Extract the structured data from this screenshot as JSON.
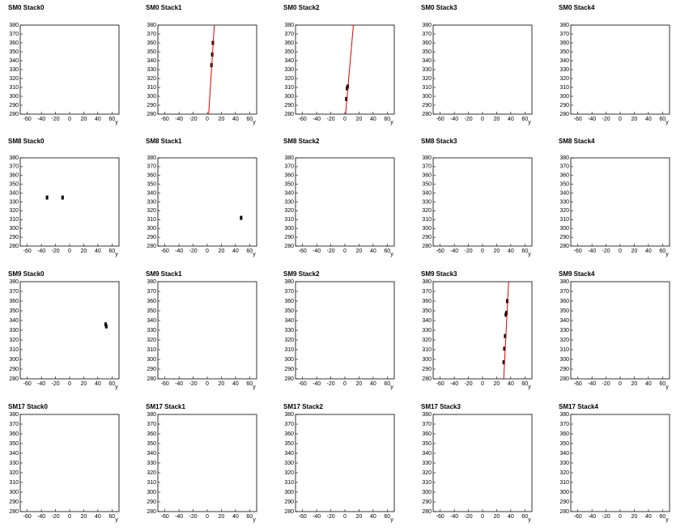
{
  "chart_data": [
    {
      "type": "scatter",
      "title": "SM0 Stack0",
      "x_label": "y",
      "xlim": [
        -70,
        70
      ],
      "ylim": [
        280,
        380
      ],
      "xticks": [
        -60,
        -40,
        -20,
        0,
        20,
        40,
        60
      ],
      "yticks": [
        280,
        290,
        300,
        310,
        320,
        330,
        340,
        350,
        360,
        370,
        380
      ],
      "color": "#000000",
      "x": [],
      "y": []
    },
    {
      "type": "scatter",
      "title": "SM0 Stack1",
      "x_label": "y",
      "xlim": [
        -70,
        70
      ],
      "ylim": [
        280,
        380
      ],
      "xticks": [
        -60,
        -40,
        -20,
        0,
        20,
        40,
        60
      ],
      "yticks": [
        280,
        290,
        300,
        310,
        320,
        330,
        340,
        350,
        360,
        370,
        380
      ],
      "color": "#000000",
      "x": [
        8,
        7,
        6
      ],
      "y": [
        360,
        347,
        335
      ],
      "fit": {
        "color": "#e00000",
        "x": [
          2,
          10
        ],
        "y": [
          280,
          380
        ]
      }
    },
    {
      "type": "scatter",
      "title": "SM0 Stack2",
      "x_label": "y",
      "xlim": [
        -70,
        70
      ],
      "ylim": [
        280,
        380
      ],
      "xticks": [
        -60,
        -40,
        -20,
        0,
        20,
        40,
        60
      ],
      "yticks": [
        280,
        290,
        300,
        310,
        320,
        330,
        340,
        350,
        360,
        370,
        380
      ],
      "color": "#000000",
      "x": [
        4,
        3,
        2
      ],
      "y": [
        311,
        309,
        297
      ],
      "fit": {
        "color": "#e00000",
        "x": [
          1,
          12
        ],
        "y": [
          280,
          380
        ]
      }
    },
    {
      "type": "scatter",
      "title": "SM0 Stack3",
      "x_label": "y",
      "xlim": [
        -70,
        70
      ],
      "ylim": [
        280,
        380
      ],
      "xticks": [
        -60,
        -40,
        -20,
        0,
        20,
        40,
        60
      ],
      "yticks": [
        280,
        290,
        300,
        310,
        320,
        330,
        340,
        350,
        360,
        370,
        380
      ],
      "color": "#000000",
      "x": [],
      "y": []
    },
    {
      "type": "scatter",
      "title": "SM0 Stack4",
      "x_label": "y",
      "xlim": [
        -70,
        70
      ],
      "ylim": [
        280,
        380
      ],
      "xticks": [
        -60,
        -40,
        -20,
        0,
        20,
        40,
        60
      ],
      "yticks": [
        280,
        290,
        300,
        310,
        320,
        330,
        340,
        350,
        360,
        370,
        380
      ],
      "color": "#000000",
      "x": [],
      "y": []
    },
    {
      "type": "scatter",
      "title": "SM8 Stack0",
      "x_label": "y",
      "xlim": [
        -70,
        70
      ],
      "ylim": [
        280,
        380
      ],
      "xticks": [
        -60,
        -40,
        -20,
        0,
        20,
        40,
        60
      ],
      "yticks": [
        280,
        290,
        300,
        310,
        320,
        330,
        340,
        350,
        360,
        370,
        380
      ],
      "color": "#000000",
      "x": [
        -32,
        -10
      ],
      "y": [
        335,
        335
      ]
    },
    {
      "type": "scatter",
      "title": "SM8 Stack1",
      "x_label": "y",
      "xlim": [
        -70,
        70
      ],
      "ylim": [
        280,
        380
      ],
      "xticks": [
        -60,
        -40,
        -20,
        0,
        20,
        40,
        60
      ],
      "yticks": [
        280,
        290,
        300,
        310,
        320,
        330,
        340,
        350,
        360,
        370,
        380
      ],
      "color": "#000000",
      "x": [
        48
      ],
      "y": [
        312
      ]
    },
    {
      "type": "scatter",
      "title": "SM8 Stack2",
      "x_label": "y",
      "xlim": [
        -70,
        70
      ],
      "ylim": [
        280,
        380
      ],
      "xticks": [
        -60,
        -40,
        -20,
        0,
        20,
        40,
        60
      ],
      "yticks": [
        280,
        290,
        300,
        310,
        320,
        330,
        340,
        350,
        360,
        370,
        380
      ],
      "color": "#000000",
      "x": [],
      "y": []
    },
    {
      "type": "scatter",
      "title": "SM8 Stack3",
      "x_label": "y",
      "xlim": [
        -70,
        70
      ],
      "ylim": [
        280,
        380
      ],
      "xticks": [
        -60,
        -40,
        -20,
        0,
        20,
        40,
        60
      ],
      "yticks": [
        280,
        290,
        300,
        310,
        320,
        330,
        340,
        350,
        360,
        370,
        380
      ],
      "color": "#000000",
      "x": [],
      "y": []
    },
    {
      "type": "scatter",
      "title": "SM8 Stack4",
      "x_label": "y",
      "xlim": [
        -70,
        70
      ],
      "ylim": [
        280,
        380
      ],
      "xticks": [
        -60,
        -40,
        -20,
        0,
        20,
        40,
        60
      ],
      "yticks": [
        280,
        290,
        300,
        310,
        320,
        330,
        340,
        350,
        360,
        370,
        380
      ],
      "color": "#000000",
      "x": [],
      "y": []
    },
    {
      "type": "scatter",
      "title": "SM9 Stack0",
      "x_label": "y",
      "xlim": [
        -70,
        70
      ],
      "ylim": [
        280,
        380
      ],
      "xticks": [
        -60,
        -40,
        -20,
        0,
        20,
        40,
        60
      ],
      "yticks": [
        280,
        290,
        300,
        310,
        320,
        330,
        340,
        350,
        360,
        370,
        380
      ],
      "color": "#000000",
      "x": [
        51,
        52
      ],
      "y": [
        336,
        334
      ]
    },
    {
      "type": "scatter",
      "title": "SM9 Stack1",
      "x_label": "y",
      "xlim": [
        -70,
        70
      ],
      "ylim": [
        280,
        380
      ],
      "xticks": [
        -60,
        -40,
        -20,
        0,
        20,
        40,
        60
      ],
      "yticks": [
        280,
        290,
        300,
        310,
        320,
        330,
        340,
        350,
        360,
        370,
        380
      ],
      "color": "#000000",
      "x": [],
      "y": []
    },
    {
      "type": "scatter",
      "title": "SM9 Stack2",
      "x_label": "y",
      "xlim": [
        -70,
        70
      ],
      "ylim": [
        280,
        380
      ],
      "xticks": [
        -60,
        -40,
        -20,
        0,
        20,
        40,
        60
      ],
      "yticks": [
        280,
        290,
        300,
        310,
        320,
        330,
        340,
        350,
        360,
        370,
        380
      ],
      "color": "#000000",
      "x": [],
      "y": []
    },
    {
      "type": "scatter",
      "title": "SM9 Stack3",
      "x_label": "y",
      "xlim": [
        -70,
        70
      ],
      "ylim": [
        280,
        380
      ],
      "xticks": [
        -60,
        -40,
        -20,
        0,
        20,
        40,
        60
      ],
      "yticks": [
        280,
        290,
        300,
        310,
        320,
        330,
        340,
        350,
        360,
        370,
        380
      ],
      "color": "#000000",
      "x": [
        35,
        34,
        33,
        32,
        31,
        30
      ],
      "y": [
        360,
        348,
        346,
        324,
        311,
        297
      ],
      "fit": {
        "color": "#e00000",
        "x": [
          30,
          37
        ],
        "y": [
          280,
          380
        ]
      }
    },
    {
      "type": "scatter",
      "title": "SM9 Stack4",
      "x_label": "y",
      "xlim": [
        -70,
        70
      ],
      "ylim": [
        280,
        380
      ],
      "xticks": [
        -60,
        -40,
        -20,
        0,
        20,
        40,
        60
      ],
      "yticks": [
        280,
        290,
        300,
        310,
        320,
        330,
        340,
        350,
        360,
        370,
        380
      ],
      "color": "#000000",
      "x": [],
      "y": []
    },
    {
      "type": "scatter",
      "title": "SM17 Stack0",
      "x_label": "y",
      "xlim": [
        -70,
        70
      ],
      "ylim": [
        280,
        380
      ],
      "xticks": [
        -60,
        -40,
        -20,
        0,
        20,
        40,
        60
      ],
      "yticks": [
        280,
        290,
        300,
        310,
        320,
        330,
        340,
        350,
        360,
        370,
        380
      ],
      "color": "#000000",
      "x": [],
      "y": []
    },
    {
      "type": "scatter",
      "title": "SM17 Stack1",
      "x_label": "y",
      "xlim": [
        -70,
        70
      ],
      "ylim": [
        280,
        380
      ],
      "xticks": [
        -60,
        -40,
        -20,
        0,
        20,
        40,
        60
      ],
      "yticks": [
        280,
        290,
        300,
        310,
        320,
        330,
        340,
        350,
        360,
        370,
        380
      ],
      "color": "#000000",
      "x": [],
      "y": []
    },
    {
      "type": "scatter",
      "title": "SM17 Stack2",
      "x_label": "y",
      "xlim": [
        -70,
        70
      ],
      "ylim": [
        280,
        380
      ],
      "xticks": [
        -60,
        -40,
        -20,
        0,
        20,
        40,
        60
      ],
      "yticks": [
        280,
        290,
        300,
        310,
        320,
        330,
        340,
        350,
        360,
        370,
        380
      ],
      "color": "#000000",
      "x": [],
      "y": []
    },
    {
      "type": "scatter",
      "title": "SM17 Stack3",
      "x_label": "y",
      "xlim": [
        -70,
        70
      ],
      "ylim": [
        280,
        380
      ],
      "xticks": [
        -60,
        -40,
        -20,
        0,
        20,
        40,
        60
      ],
      "yticks": [
        280,
        290,
        300,
        310,
        320,
        330,
        340,
        350,
        360,
        370,
        380
      ],
      "color": "#000000",
      "x": [],
      "y": []
    },
    {
      "type": "scatter",
      "title": "SM17 Stack4",
      "x_label": "y",
      "xlim": [
        -70,
        70
      ],
      "ylim": [
        280,
        380
      ],
      "xticks": [
        -60,
        -40,
        -20,
        0,
        20,
        40,
        60
      ],
      "yticks": [
        280,
        290,
        300,
        310,
        320,
        330,
        340,
        350,
        360,
        370,
        380
      ],
      "color": "#000000",
      "x": [],
      "y": []
    }
  ]
}
